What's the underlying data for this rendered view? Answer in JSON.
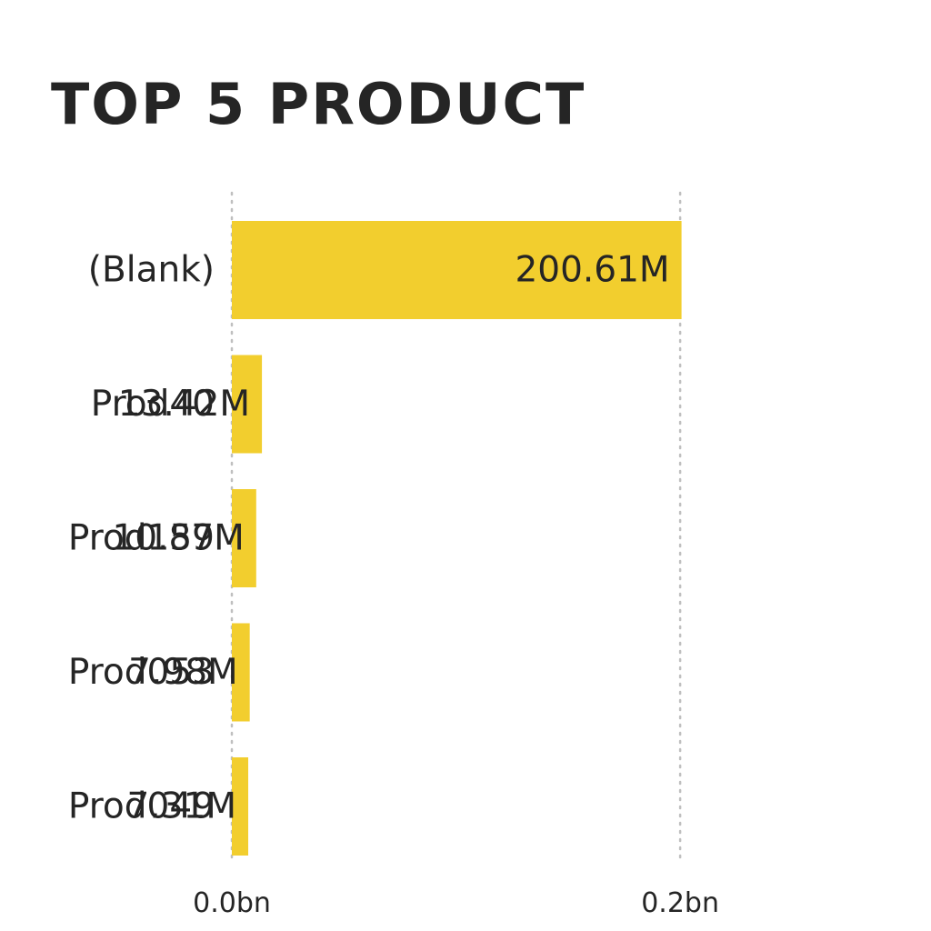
{
  "chart_data": {
    "type": "bar",
    "orientation": "horizontal",
    "title": "TOP 5 PRODUCT",
    "categories": [
      "(Blank)",
      "Prod40",
      "Prod159",
      "Prod053",
      "Prod049"
    ],
    "values": [
      200610000,
      13420000,
      10870000,
      7980000,
      7310000
    ],
    "data_labels": [
      "200.61M",
      "13.42M",
      "10.87M",
      "7.98M",
      "7.31M"
    ],
    "x_ticks": [
      {
        "value": 0,
        "label": "0.0bn"
      },
      {
        "value": 200000000,
        "label": "0.2bn"
      }
    ],
    "xlim": [
      0,
      290000000
    ],
    "grid": true,
    "legend": "none",
    "bar_color": "#F2CE2E",
    "text_color": "#252525",
    "grid_color": "#BFBFBF"
  }
}
